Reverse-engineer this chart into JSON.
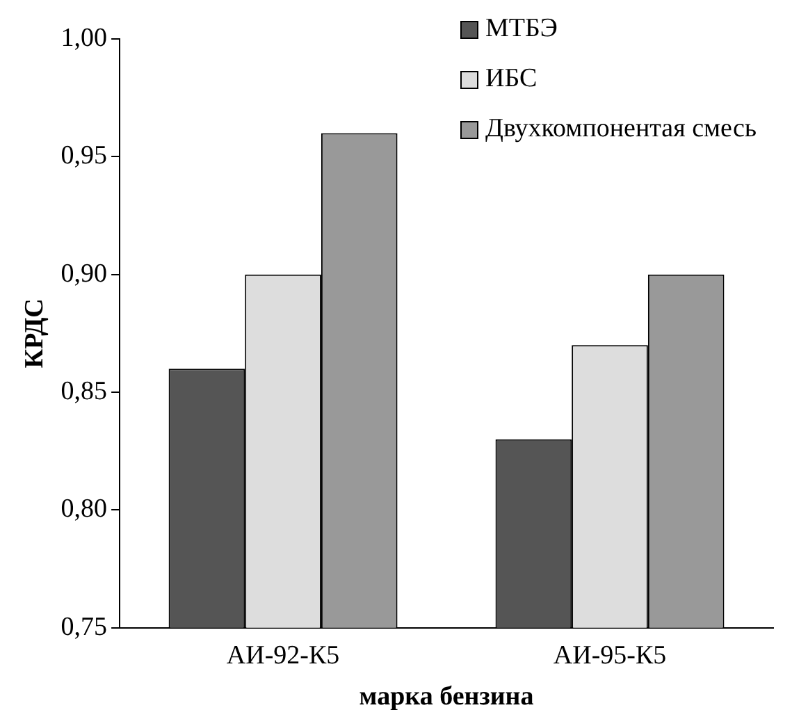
{
  "chart_data": {
    "type": "bar",
    "xlabel": "марка бензина",
    "ylabel": "КРДС",
    "categories": [
      "АИ-92-К5",
      "АИ-95-К5"
    ],
    "series": [
      {
        "name": "МТБЭ",
        "color": "#555555",
        "values": [
          0.86,
          0.83
        ]
      },
      {
        "name": "ИБС",
        "color": "#dddddd",
        "values": [
          0.9,
          0.87
        ]
      },
      {
        "name": "Двухкомпонентая смесь",
        "color": "#999999",
        "values": [
          0.96,
          0.9
        ]
      }
    ],
    "ylim": [
      0.75,
      1.0
    ],
    "yticks": [
      {
        "value": 0.75,
        "label": "0,75"
      },
      {
        "value": 0.8,
        "label": "0,80"
      },
      {
        "value": 0.85,
        "label": "0,85"
      },
      {
        "value": 0.9,
        "label": "0,90"
      },
      {
        "value": 0.95,
        "label": "0,95"
      },
      {
        "value": 1.0,
        "label": "1,00"
      }
    ],
    "grid": false,
    "legend": "top right"
  }
}
